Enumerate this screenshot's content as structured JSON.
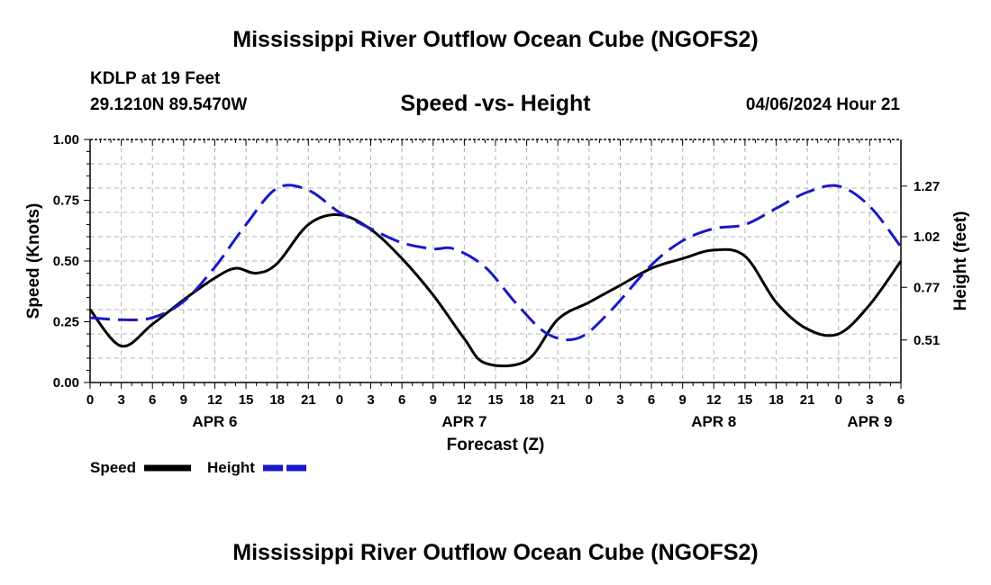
{
  "title": "Mississippi River Outflow Ocean Cube (NGOFS2)",
  "title_bottom": "Mississippi River Outflow Ocean Cube (NGOFS2)",
  "station": {
    "name": "KDLP at 19 Feet",
    "coords": "29.1210N  89.5470W"
  },
  "chart_subtitle": "Speed -vs- Height",
  "forecast_time": "04/06/2024 Hour 21",
  "chart_data": {
    "type": "line",
    "xlabel": "Forecast (Z)",
    "ylabel_left": "Speed (Knots)",
    "ylabel_right": "Height (feet)",
    "ylim_left": [
      0,
      1
    ],
    "ylim_right": [
      0.3,
      1.5
    ],
    "xlim_hours": [
      0,
      78
    ],
    "x_tick_labels": [
      "0",
      "3",
      "6",
      "9",
      "12",
      "15",
      "18",
      "21",
      "0",
      "3",
      "6",
      "9",
      "12",
      "15",
      "18",
      "21",
      "0",
      "3",
      "6",
      "9",
      "12",
      "15",
      "18",
      "21",
      "0",
      "3",
      "6"
    ],
    "date_labels": [
      {
        "label": "APR 6",
        "hour": 12
      },
      {
        "label": "APR 7",
        "hour": 36
      },
      {
        "label": "APR 8",
        "hour": 60
      },
      {
        "label": "APR 9",
        "hour": 75
      }
    ],
    "left_ticks": [
      "0.00",
      "0.25",
      "0.50",
      "0.75",
      "1.00"
    ],
    "right_ticks": [
      {
        "label": "0.51",
        "value": 0.51
      },
      {
        "label": "0.77",
        "value": 0.77
      },
      {
        "label": "1.02",
        "value": 1.02
      },
      {
        "label": "1.27",
        "value": 1.27
      }
    ],
    "grid": true,
    "legend_position": "bottom-left",
    "series": [
      {
        "name": "Speed",
        "axis": "left",
        "color": "#000000",
        "dash": "solid",
        "hours": [
          0,
          3,
          6,
          9,
          12,
          14,
          16,
          18,
          21,
          24,
          27,
          30,
          33,
          36,
          38,
          42,
          45,
          48,
          51,
          54,
          57,
          60,
          63,
          66,
          69,
          72,
          75,
          78
        ],
        "values": [
          0.3,
          0.15,
          0.24,
          0.34,
          0.43,
          0.47,
          0.45,
          0.49,
          0.65,
          0.69,
          0.63,
          0.51,
          0.36,
          0.18,
          0.08,
          0.09,
          0.26,
          0.33,
          0.4,
          0.47,
          0.51,
          0.545,
          0.52,
          0.33,
          0.22,
          0.2,
          0.32,
          0.5
        ]
      },
      {
        "name": "Height",
        "axis": "right",
        "color": "#1818c8",
        "dash": "dashed",
        "hours": [
          0,
          3,
          6,
          9,
          12,
          15,
          18,
          21,
          24,
          27,
          30,
          33,
          35,
          38,
          41,
          44,
          47,
          50,
          54,
          57,
          60,
          63,
          66,
          69,
          72,
          75,
          78
        ],
        "values": [
          0.62,
          0.61,
          0.62,
          0.7,
          0.87,
          1.08,
          1.26,
          1.25,
          1.14,
          1.06,
          0.99,
          0.96,
          0.96,
          0.87,
          0.69,
          0.54,
          0.52,
          0.65,
          0.88,
          1.0,
          1.06,
          1.08,
          1.16,
          1.24,
          1.27,
          1.17,
          0.97
        ]
      }
    ]
  },
  "legend": {
    "speed_label": "Speed",
    "height_label": "Height"
  }
}
